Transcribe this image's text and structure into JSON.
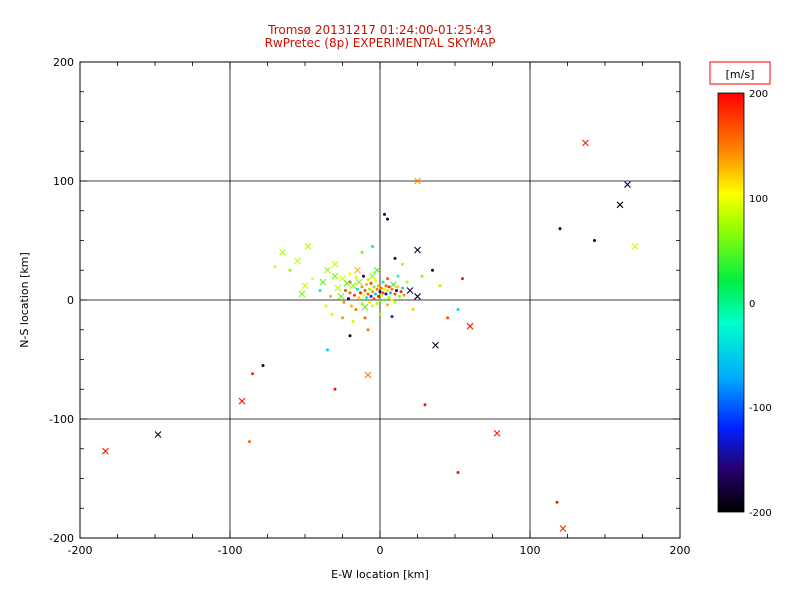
{
  "chart_data": {
    "type": "scatter",
    "title": "Tromsø 20131217 01:24:00-01:25:43",
    "subtitle": "RwPretec (8p) EXPERIMENTAL SKYMAP",
    "xlabel": "E-W location [km]",
    "ylabel": "N-S location [km]",
    "xlim": [
      -200,
      200
    ],
    "ylim": [
      -200,
      200
    ],
    "grid": true,
    "grid_lines": [
      -100,
      0,
      100
    ],
    "x_ticks": [
      -200,
      -100,
      0,
      100,
      200
    ],
    "x_tick_labels": [
      "-200",
      "-100",
      "0",
      "100",
      "200"
    ],
    "y_ticks": [
      200,
      100,
      0,
      -100,
      -200
    ],
    "y_tick_labels": [
      "200",
      "100",
      "0",
      "-100",
      "-200"
    ],
    "colors": {
      "title": "#cc1100",
      "frame": "#000000",
      "background": "#ffffff",
      "colorbar_label": "#ff0000"
    },
    "colorbar": {
      "label": "[m/s]",
      "min": -200,
      "max": 200,
      "tick_values": [
        200,
        100,
        0,
        -100,
        -200
      ],
      "tick_labels": [
        "200",
        "100",
        "0",
        "-100",
        "-200"
      ]
    },
    "colormap_stops": [
      [
        0.0,
        "#000000"
      ],
      [
        0.1,
        "#25006a"
      ],
      [
        0.2,
        "#0020ff"
      ],
      [
        0.32,
        "#00aaff"
      ],
      [
        0.45,
        "#00ffcc"
      ],
      [
        0.55,
        "#00ee44"
      ],
      [
        0.68,
        "#99ff00"
      ],
      [
        0.76,
        "#ffff00"
      ],
      [
        0.86,
        "#ff8800"
      ],
      [
        1.0,
        "#ff0000"
      ]
    ],
    "points_format": [
      "x_km",
      "y_km",
      "velocity_ms",
      "marker"
    ],
    "points": [
      [
        137,
        132,
        190,
        "x"
      ],
      [
        165,
        97,
        -170,
        "x"
      ],
      [
        160,
        80,
        -190,
        "x"
      ],
      [
        170,
        45,
        90,
        "x"
      ],
      [
        143,
        50,
        -180,
        "d"
      ],
      [
        120,
        60,
        -190,
        "d"
      ],
      [
        -183,
        -127,
        195,
        "x"
      ],
      [
        -148,
        -113,
        -190,
        "x"
      ],
      [
        -92,
        -85,
        195,
        "x"
      ],
      [
        -87,
        -119,
        160,
        "d"
      ],
      [
        78,
        -112,
        190,
        "x"
      ],
      [
        52,
        -145,
        195,
        "d"
      ],
      [
        118,
        -170,
        190,
        "d"
      ],
      [
        122,
        -192,
        185,
        "x"
      ],
      [
        25,
        100,
        140,
        "x"
      ],
      [
        3,
        72,
        -180,
        "d"
      ],
      [
        5,
        68,
        -175,
        "d"
      ],
      [
        25,
        42,
        -185,
        "x"
      ],
      [
        -30,
        -75,
        190,
        "d"
      ],
      [
        -8,
        -63,
        150,
        "x"
      ],
      [
        -78,
        -55,
        -185,
        "d"
      ],
      [
        -85,
        -62,
        185,
        "d"
      ],
      [
        -65,
        40,
        75,
        "x"
      ],
      [
        -60,
        25,
        70,
        "d"
      ],
      [
        -55,
        33,
        85,
        "x"
      ],
      [
        -52,
        5,
        60,
        "x"
      ],
      [
        -70,
        28,
        90,
        "d"
      ],
      [
        -48,
        45,
        80,
        "x"
      ],
      [
        -5,
        45,
        -30,
        "d"
      ],
      [
        -12,
        40,
        55,
        "d"
      ],
      [
        10,
        35,
        -170,
        "d"
      ],
      [
        15,
        30,
        120,
        "d"
      ],
      [
        -8,
        -25,
        150,
        "d"
      ],
      [
        -20,
        -30,
        -180,
        "d"
      ],
      [
        -35,
        -42,
        -45,
        "d"
      ],
      [
        37,
        -38,
        -185,
        "x"
      ],
      [
        30,
        -88,
        195,
        "d"
      ],
      [
        60,
        -22,
        190,
        "x"
      ],
      [
        45,
        -15,
        170,
        "d"
      ],
      [
        52,
        -8,
        -40,
        "d"
      ],
      [
        40,
        12,
        75,
        "d"
      ],
      [
        55,
        18,
        190,
        "d"
      ],
      [
        35,
        25,
        -170,
        "d"
      ],
      [
        -35,
        25,
        70,
        "x"
      ],
      [
        -32,
        -12,
        110,
        "d"
      ],
      [
        -30,
        30,
        90,
        "x"
      ],
      [
        -38,
        15,
        50,
        "x"
      ],
      [
        -40,
        8,
        -30,
        "d"
      ],
      [
        -33,
        3,
        130,
        "d"
      ],
      [
        -28,
        10,
        80,
        "x"
      ],
      [
        -26,
        3,
        60,
        "x"
      ],
      [
        -25,
        18,
        90,
        "x"
      ],
      [
        -24,
        -2,
        140,
        "d"
      ],
      [
        -23,
        8,
        170,
        "d"
      ],
      [
        -22,
        14,
        50,
        "x"
      ],
      [
        -21,
        1,
        -170,
        "d"
      ],
      [
        -20,
        22,
        100,
        "d"
      ],
      [
        -20,
        6,
        160,
        "d"
      ],
      [
        -19,
        -5,
        130,
        "d"
      ],
      [
        -18,
        12,
        70,
        "x"
      ],
      [
        -17,
        4,
        180,
        "d"
      ],
      [
        -16,
        19,
        90,
        "d"
      ],
      [
        -16,
        -8,
        150,
        "d"
      ],
      [
        -15,
        9,
        -40,
        "d"
      ],
      [
        -14,
        2,
        120,
        "d"
      ],
      [
        -14,
        15,
        60,
        "x"
      ],
      [
        -13,
        6,
        190,
        "d"
      ],
      [
        -12,
        -3,
        80,
        "d"
      ],
      [
        -12,
        11,
        140,
        "d"
      ],
      [
        -11,
        20,
        -160,
        "d"
      ],
      [
        -11,
        4,
        100,
        "d"
      ],
      [
        -10,
        8,
        170,
        "d"
      ],
      [
        -10,
        -6,
        50,
        "x"
      ],
      [
        -9,
        13,
        130,
        "d"
      ],
      [
        -9,
        2,
        -30,
        "d"
      ],
      [
        -8,
        17,
        90,
        "d"
      ],
      [
        -8,
        5,
        160,
        "d"
      ],
      [
        -7,
        -2,
        110,
        "d"
      ],
      [
        -7,
        9,
        70,
        "d"
      ],
      [
        -6,
        14,
        180,
        "d"
      ],
      [
        -6,
        3,
        -120,
        "d"
      ],
      [
        -5,
        7,
        140,
        "d"
      ],
      [
        -5,
        -5,
        90,
        "d"
      ],
      [
        -4,
        11,
        60,
        "d"
      ],
      [
        -4,
        1,
        170,
        "d"
      ],
      [
        -3,
        16,
        100,
        "d"
      ],
      [
        -3,
        5,
        -50,
        "d"
      ],
      [
        -2,
        9,
        150,
        "d"
      ],
      [
        -2,
        -3,
        80,
        "d"
      ],
      [
        -1,
        12,
        130,
        "d"
      ],
      [
        -1,
        3,
        190,
        "d"
      ],
      [
        0,
        7,
        -170,
        "d"
      ],
      [
        0,
        -1,
        60,
        "d"
      ],
      [
        1,
        10,
        140,
        "d"
      ],
      [
        1,
        4,
        90,
        "d"
      ],
      [
        2,
        15,
        -30,
        "d"
      ],
      [
        2,
        6,
        170,
        "d"
      ],
      [
        3,
        9,
        110,
        "d"
      ],
      [
        3,
        0,
        50,
        "d"
      ],
      [
        4,
        12,
        160,
        "d"
      ],
      [
        4,
        5,
        -140,
        "d"
      ],
      [
        5,
        8,
        80,
        "d"
      ],
      [
        5,
        -4,
        130,
        "d"
      ],
      [
        6,
        11,
        180,
        "d"
      ],
      [
        6,
        2,
        70,
        "d"
      ],
      [
        7,
        6,
        -60,
        "d"
      ],
      [
        8,
        9,
        150,
        "d"
      ],
      [
        8,
        0,
        100,
        "d"
      ],
      [
        9,
        13,
        40,
        "x"
      ],
      [
        10,
        5,
        170,
        "d"
      ],
      [
        10,
        -2,
        90,
        "d"
      ],
      [
        11,
        8,
        -150,
        "d"
      ],
      [
        12,
        11,
        120,
        "d"
      ],
      [
        13,
        3,
        60,
        "d"
      ],
      [
        14,
        7,
        180,
        "d"
      ],
      [
        15,
        10,
        -40,
        "d"
      ],
      [
        16,
        4,
        140,
        "d"
      ],
      [
        18,
        15,
        80,
        "d"
      ],
      [
        20,
        8,
        -170,
        "x"
      ],
      [
        22,
        -8,
        120,
        "d"
      ],
      [
        25,
        3,
        -180,
        "x"
      ],
      [
        28,
        20,
        60,
        "d"
      ],
      [
        -25,
        -15,
        140,
        "d"
      ],
      [
        -18,
        -18,
        90,
        "d"
      ],
      [
        -10,
        -15,
        160,
        "d"
      ],
      [
        0,
        -12,
        70,
        "d"
      ],
      [
        8,
        -14,
        -120,
        "d"
      ],
      [
        -45,
        18,
        100,
        "d"
      ],
      [
        -50,
        12,
        85,
        "x"
      ],
      [
        -15,
        25,
        130,
        "x"
      ],
      [
        -5,
        20,
        75,
        "x"
      ],
      [
        5,
        18,
        165,
        "d"
      ],
      [
        -2,
        25,
        45,
        "x"
      ],
      [
        -20,
        15,
        155,
        "d"
      ],
      [
        12,
        20,
        -20,
        "d"
      ],
      [
        -30,
        20,
        65,
        "x"
      ],
      [
        -36,
        -5,
        95,
        "d"
      ]
    ]
  }
}
